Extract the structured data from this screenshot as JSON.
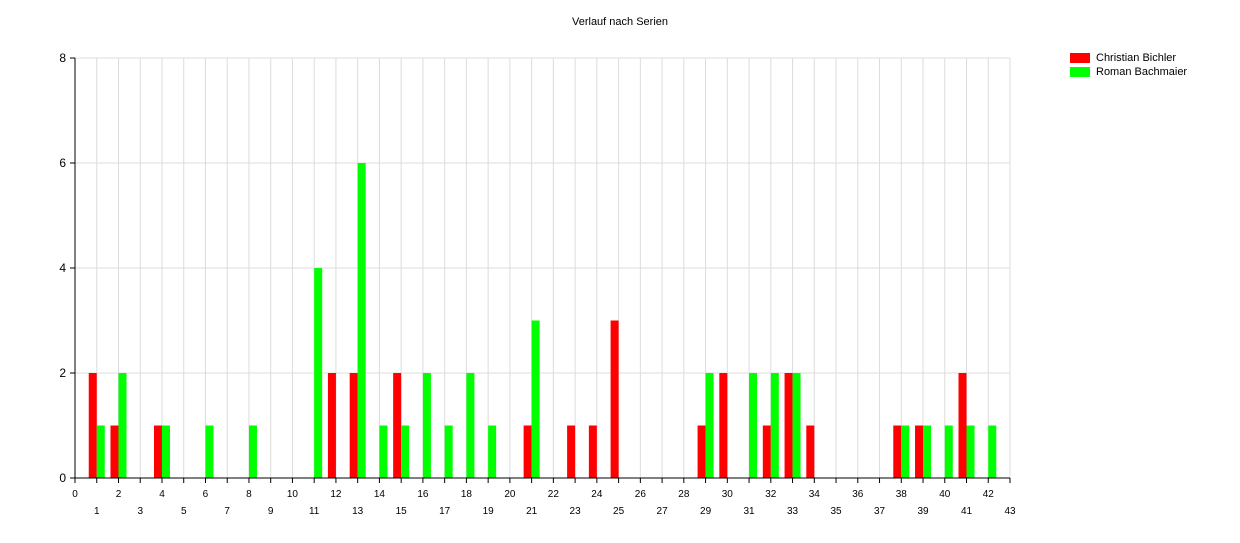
{
  "chart_data": {
    "type": "bar",
    "title": "Verlauf nach Serien",
    "xlim": [
      0,
      43
    ],
    "ylim": [
      0,
      8
    ],
    "yticks": [
      0,
      2,
      4,
      6,
      8
    ],
    "grid": true,
    "legend_position": "top-right",
    "series": [
      {
        "name": "Christian Bichler",
        "color": "#ff0000",
        "points": [
          [
            1,
            2
          ],
          [
            2,
            1
          ],
          [
            4,
            1
          ],
          [
            12,
            2
          ],
          [
            13,
            2
          ],
          [
            15,
            2
          ],
          [
            21,
            1
          ],
          [
            23,
            1
          ],
          [
            24,
            1
          ],
          [
            25,
            3
          ],
          [
            29,
            1
          ],
          [
            30,
            2
          ],
          [
            32,
            1
          ],
          [
            33,
            2
          ],
          [
            34,
            1
          ],
          [
            38,
            1
          ],
          [
            39,
            1
          ],
          [
            41,
            2
          ]
        ]
      },
      {
        "name": "Roman Bachmaier",
        "color": "#00ff00",
        "points": [
          [
            1,
            1
          ],
          [
            2,
            2
          ],
          [
            4,
            1
          ],
          [
            6,
            1
          ],
          [
            8,
            1
          ],
          [
            11,
            4
          ],
          [
            13,
            6
          ],
          [
            14,
            1
          ],
          [
            15,
            1
          ],
          [
            16,
            2
          ],
          [
            17,
            1
          ],
          [
            18,
            2
          ],
          [
            19,
            1
          ],
          [
            21,
            3
          ],
          [
            29,
            2
          ],
          [
            31,
            2
          ],
          [
            32,
            2
          ],
          [
            33,
            2
          ],
          [
            38,
            1
          ],
          [
            39,
            1
          ],
          [
            40,
            1
          ],
          [
            41,
            1
          ],
          [
            42,
            1
          ]
        ]
      }
    ]
  }
}
